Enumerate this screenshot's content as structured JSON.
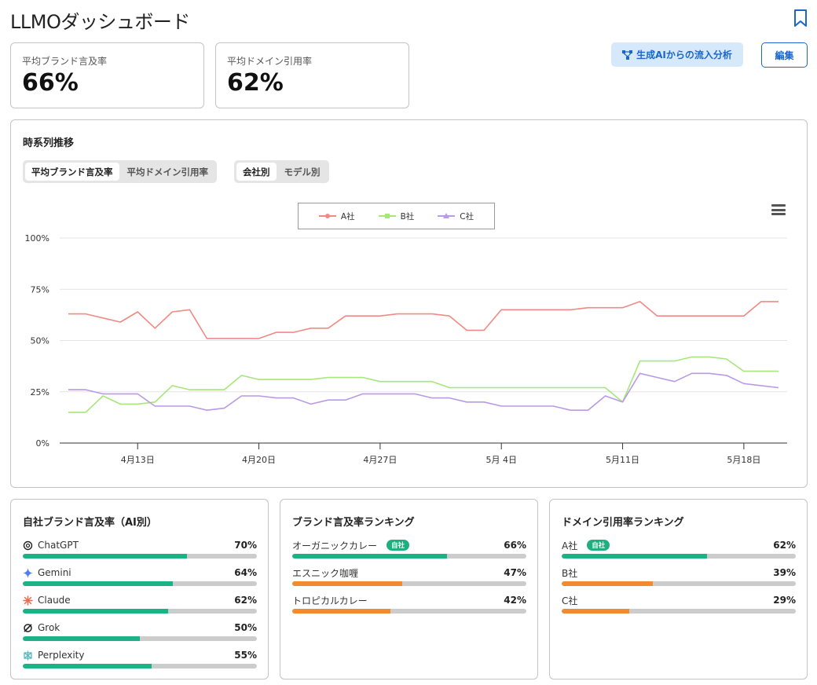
{
  "header": {
    "title": "LLMOダッシュボード"
  },
  "kpis": [
    {
      "label": "平均ブランド言及率",
      "value": "66%"
    },
    {
      "label": "平均ドメイン引用率",
      "value": "62%"
    }
  ],
  "actions": {
    "analysis_label": "生成AIからの流入分析",
    "edit_label": "編集"
  },
  "trend": {
    "title": "時系列推移",
    "metric_tabs": [
      {
        "label": "平均ブランド言及率",
        "active": true
      },
      {
        "label": "平均ドメイン引用率",
        "active": false
      }
    ],
    "group_tabs": [
      {
        "label": "会社別",
        "active": true
      },
      {
        "label": "モデル別",
        "active": false
      }
    ]
  },
  "chart_data": {
    "type": "line",
    "title": "",
    "xlabel": "",
    "ylabel": "",
    "ylim": [
      0,
      100
    ],
    "yticks": [
      "0%",
      "25%",
      "50%",
      "75%",
      "100%"
    ],
    "xticks": [
      "4月13日",
      "4月20日",
      "4月27日",
      "5月 4日",
      "5月11日",
      "5月18日"
    ],
    "xtick_index": [
      4,
      11,
      18,
      25,
      32,
      39
    ],
    "x": [
      "4/9",
      "4/10",
      "4/11",
      "4/12",
      "4/13",
      "4/14",
      "4/15",
      "4/16",
      "4/17",
      "4/18",
      "4/19",
      "4/20",
      "4/21",
      "4/22",
      "4/23",
      "4/24",
      "4/25",
      "4/26",
      "4/27",
      "4/28",
      "4/29",
      "4/30",
      "5/1",
      "5/2",
      "5/3",
      "5/4",
      "5/5",
      "5/6",
      "5/7",
      "5/8",
      "5/9",
      "5/10",
      "5/11",
      "5/12",
      "5/13",
      "5/14",
      "5/15",
      "5/16",
      "5/17",
      "5/18",
      "5/19",
      "5/20"
    ],
    "grid": true,
    "legend_position": "top-center",
    "series": [
      {
        "name": "A社",
        "color": "#f08a85",
        "values": [
          63,
          63,
          61,
          59,
          64,
          56,
          64,
          65,
          51,
          51,
          51,
          51,
          54,
          54,
          56,
          56,
          62,
          62,
          62,
          63,
          63,
          63,
          62,
          55,
          55,
          65,
          65,
          65,
          65,
          65,
          66,
          66,
          66,
          69,
          62,
          62,
          62,
          62,
          62,
          62,
          69,
          69
        ]
      },
      {
        "name": "B社",
        "color": "#a6e67a",
        "values": [
          15,
          15,
          23,
          19,
          19,
          20,
          28,
          26,
          26,
          26,
          33,
          31,
          31,
          31,
          31,
          32,
          32,
          32,
          30,
          30,
          30,
          30,
          27,
          27,
          27,
          27,
          27,
          27,
          27,
          27,
          27,
          27,
          20,
          40,
          40,
          40,
          42,
          42,
          41,
          35,
          35,
          35
        ]
      },
      {
        "name": "C社",
        "color": "#b89ae6",
        "values": [
          26,
          26,
          24,
          24,
          24,
          18,
          18,
          18,
          16,
          17,
          23,
          23,
          22,
          22,
          19,
          21,
          21,
          24,
          24,
          24,
          24,
          22,
          22,
          20,
          20,
          18,
          18,
          18,
          18,
          16,
          16,
          23,
          20,
          34,
          32,
          30,
          34,
          34,
          33,
          29,
          28,
          27
        ]
      }
    ]
  },
  "ai_panel": {
    "title": "自社ブランド言及率（AI別）",
    "rows": [
      {
        "name": "ChatGPT",
        "pct": "70%",
        "value": 0.7,
        "icon": "openai-icon"
      },
      {
        "name": "Gemini",
        "pct": "64%",
        "value": 0.64,
        "icon": "gemini-icon"
      },
      {
        "name": "Claude",
        "pct": "62%",
        "value": 0.62,
        "icon": "claude-icon"
      },
      {
        "name": "Grok",
        "pct": "50%",
        "value": 0.5,
        "icon": "grok-icon"
      },
      {
        "name": "Perplexity",
        "pct": "55%",
        "value": 0.55,
        "icon": "perplexity-icon"
      }
    ]
  },
  "brand_panel": {
    "title": "ブランド言及率ランキング",
    "rows": [
      {
        "name": "オーガニックカレー",
        "pct": "66%",
        "value": 0.66,
        "badge": "自社"
      },
      {
        "name": "エスニック咖喱",
        "pct": "47%",
        "value": 0.47
      },
      {
        "name": "トロピカルカレー",
        "pct": "42%",
        "value": 0.42
      }
    ]
  },
  "domain_panel": {
    "title": "ドメイン引用率ランキング",
    "rows": [
      {
        "name": "A社",
        "pct": "62%",
        "value": 0.62,
        "badge": "自社"
      },
      {
        "name": "B社",
        "pct": "39%",
        "value": 0.39
      },
      {
        "name": "C社",
        "pct": "29%",
        "value": 0.29
      }
    ]
  },
  "colors": {
    "own": "#1bb385",
    "other": "#f28a2e",
    "track": "#cccccc",
    "accent": "#1b66c9"
  }
}
